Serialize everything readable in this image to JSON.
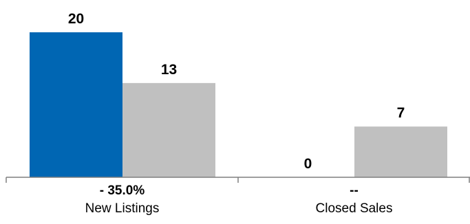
{
  "chart_data": {
    "type": "bar",
    "categories": [
      "New Listings",
      "Closed Sales"
    ],
    "change_labels": [
      "- 35.0%",
      "--"
    ],
    "series": [
      {
        "values": [
          20,
          0
        ],
        "color": "#0066b3"
      },
      {
        "values": [
          13,
          7
        ],
        "color": "#c0c0c0"
      }
    ],
    "value_labels": [
      [
        "20",
        "0"
      ],
      [
        "13",
        "7"
      ]
    ],
    "ylim": [
      0,
      20
    ],
    "grid": false,
    "legend": "none",
    "axis_color": "#7f7f7f"
  }
}
